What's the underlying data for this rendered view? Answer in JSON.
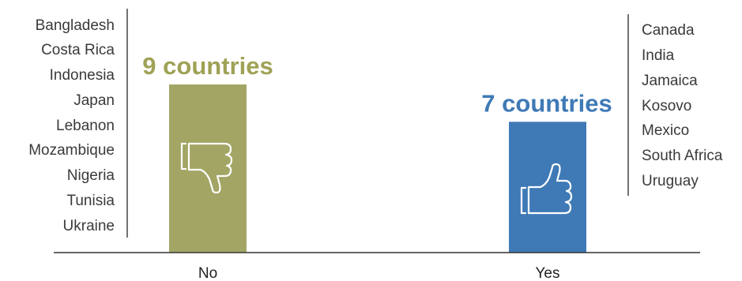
{
  "chart_data": {
    "type": "bar",
    "categories": [
      "No",
      "Yes"
    ],
    "values": [
      9,
      7
    ],
    "ylim": [
      0,
      9
    ],
    "bar_labels": [
      "9 countries",
      "7 countries"
    ],
    "bar_colors": [
      "#a3a564",
      "#3f7ab6"
    ],
    "label_colors": [
      "#9fa256",
      "#3f7ab6"
    ],
    "icons": [
      "thumbs-down-icon",
      "thumbs-up-icon"
    ],
    "country_lists": [
      [
        "Bangladesh",
        "Costa Rica",
        "Indonesia",
        "Japan",
        "Lebanon",
        "Mozambique",
        "Nigeria",
        "Tunisia",
        "Ukraine"
      ],
      [
        "Canada",
        "India",
        "Jamaica",
        "Kosovo",
        "Mexico",
        "South Africa",
        "Uruguay"
      ]
    ],
    "grid": false
  }
}
